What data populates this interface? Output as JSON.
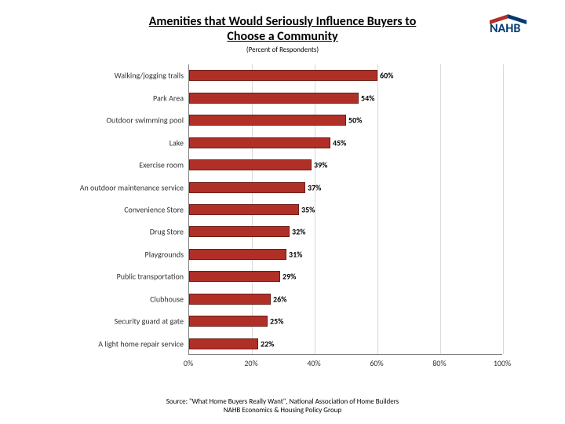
{
  "title_line1": "Amenities that Would Seriously Influence Buyers to",
  "title_line2": "Choose a Community",
  "subtitle": "(Percent of Respondents)",
  "logo_text": "NAHB",
  "source_line1": "Source: \"What Home Buyers Really Want\", National Association of Home Builders",
  "source_line2": "NAHB Economics & Housing Policy Group",
  "chart": {
    "type": "bar-horizontal",
    "xlim": [
      0,
      100
    ],
    "xticks": [
      0,
      20,
      40,
      60,
      80,
      100
    ],
    "xtick_labels": [
      "0%",
      "20%",
      "40%",
      "60%",
      "80%",
      "100%"
    ],
    "bar_color": "#b03028",
    "bar_border_color": "#6a1f17",
    "grid_color": "#d9d9d9",
    "axis_color": "#808080",
    "background_color": "#ffffff",
    "label_fontsize": 10,
    "value_fontsize": 10,
    "value_fontweight": 700,
    "categories": [
      "Walking/jogging trails",
      "Park Area",
      "Outdoor swimming pool",
      "Lake",
      "Exercise room",
      "An outdoor maintenance service",
      "Convenience Store",
      "Drug Store",
      "Playgrounds",
      "Public transportation",
      "Clubhouse",
      "Security guard at gate",
      "A light home repair service"
    ],
    "values": [
      60,
      54,
      50,
      45,
      39,
      37,
      35,
      32,
      31,
      29,
      26,
      25,
      22
    ],
    "value_labels": [
      "60%",
      "54%",
      "50%",
      "45%",
      "39%",
      "37%",
      "35%",
      "32%",
      "31%",
      "29%",
      "26%",
      "25%",
      "22%"
    ]
  }
}
